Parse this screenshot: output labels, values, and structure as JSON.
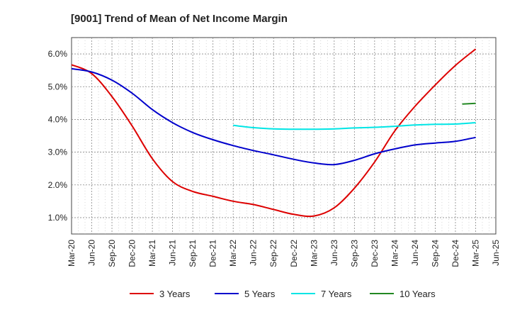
{
  "chart_data": {
    "type": "line",
    "title": "[9001]  Trend of Mean of Net Income Margin",
    "xlabel": "",
    "ylabel": "",
    "x_ticks": [
      "Mar-20",
      "Jun-20",
      "Sep-20",
      "Dec-20",
      "Mar-21",
      "Jun-21",
      "Sep-21",
      "Dec-21",
      "Mar-22",
      "Jun-22",
      "Sep-22",
      "Dec-22",
      "Mar-23",
      "Jun-23",
      "Sep-23",
      "Dec-23",
      "Mar-24",
      "Jun-24",
      "Sep-24",
      "Dec-24",
      "Mar-25",
      "Jun-25"
    ],
    "y_ticks": [
      "1.0%",
      "2.0%",
      "3.0%",
      "4.0%",
      "5.0%",
      "6.0%"
    ],
    "y_tick_values": [
      1.0,
      2.0,
      3.0,
      4.0,
      5.0,
      6.0
    ],
    "ylim": [
      0.5,
      6.5
    ],
    "grid": true,
    "legend_position": "bottom",
    "series": [
      {
        "name": "3 Years",
        "color": "#dd0000",
        "x": [
          "Mar-20",
          "Jun-20",
          "Sep-20",
          "Dec-20",
          "Mar-21",
          "Jun-21",
          "Sep-21",
          "Dec-21",
          "Mar-22",
          "Jun-22",
          "Sep-22",
          "Dec-22",
          "Mar-23",
          "Jun-23",
          "Sep-23",
          "Dec-23",
          "Mar-24",
          "Jun-24",
          "Sep-24",
          "Dec-24",
          "Mar-25"
        ],
        "values": [
          5.67,
          5.4,
          4.7,
          3.8,
          2.8,
          2.1,
          1.8,
          1.65,
          1.5,
          1.4,
          1.25,
          1.1,
          1.05,
          1.3,
          1.9,
          2.7,
          3.65,
          4.4,
          5.05,
          5.65,
          6.15
        ]
      },
      {
        "name": "5 Years",
        "color": "#0000cc",
        "x": [
          "Mar-20",
          "Jun-20",
          "Sep-20",
          "Dec-20",
          "Mar-21",
          "Jun-21",
          "Sep-21",
          "Dec-21",
          "Mar-22",
          "Jun-22",
          "Sep-22",
          "Dec-22",
          "Mar-23",
          "Jun-23",
          "Sep-23",
          "Dec-23",
          "Mar-24",
          "Jun-24",
          "Sep-24",
          "Dec-24",
          "Mar-25"
        ],
        "values": [
          5.55,
          5.45,
          5.2,
          4.8,
          4.3,
          3.9,
          3.6,
          3.38,
          3.2,
          3.05,
          2.92,
          2.78,
          2.67,
          2.62,
          2.75,
          2.95,
          3.1,
          3.22,
          3.28,
          3.33,
          3.45
        ]
      },
      {
        "name": "7 Years",
        "color": "#00e5e5",
        "x": [
          "Mar-22",
          "Jun-22",
          "Sep-22",
          "Dec-22",
          "Mar-23",
          "Jun-23",
          "Sep-23",
          "Dec-23",
          "Mar-24",
          "Jun-24",
          "Sep-24",
          "Dec-24",
          "Mar-25"
        ],
        "values": [
          3.82,
          3.75,
          3.71,
          3.7,
          3.7,
          3.71,
          3.74,
          3.76,
          3.79,
          3.83,
          3.85,
          3.86,
          3.9
        ]
      },
      {
        "name": "10 Years",
        "color": "#228822",
        "x": [
          "Dec-24+",
          "Mar-25"
        ],
        "x_values": [
          "Jan-25",
          "Mar-25"
        ],
        "values": [
          4.47,
          4.49
        ]
      }
    ]
  }
}
